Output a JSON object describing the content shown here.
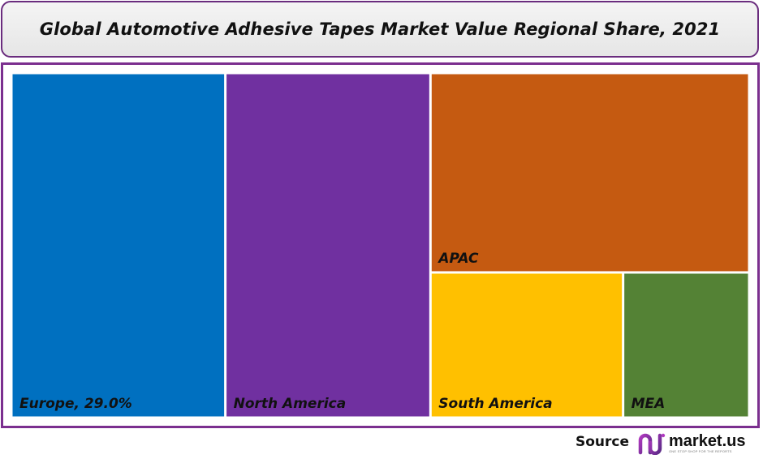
{
  "chart_data": {
    "type": "treemap",
    "title": "Global Automotive Adhesive Tapes Market Value Regional Share, 2021",
    "cells": [
      {
        "label": "Europe, 29.0%",
        "value": 29.0,
        "color": "#0070c0"
      },
      {
        "label": "North America",
        "value": 27.8,
        "color": "#7030a0"
      },
      {
        "label": "APAC",
        "value": 25.0,
        "color": "#c55a11"
      },
      {
        "label": "South America",
        "value": 11.0,
        "color": "#ffc000"
      },
      {
        "label": "MEA",
        "value": 7.2,
        "color": "#548235"
      }
    ]
  },
  "footer": {
    "source_label": "Source",
    "logo_name": "market.us",
    "logo_tagline": "ONE STOP SHOP FOR THE REPORTS",
    "logo_icon": "market-us-logo-icon"
  }
}
